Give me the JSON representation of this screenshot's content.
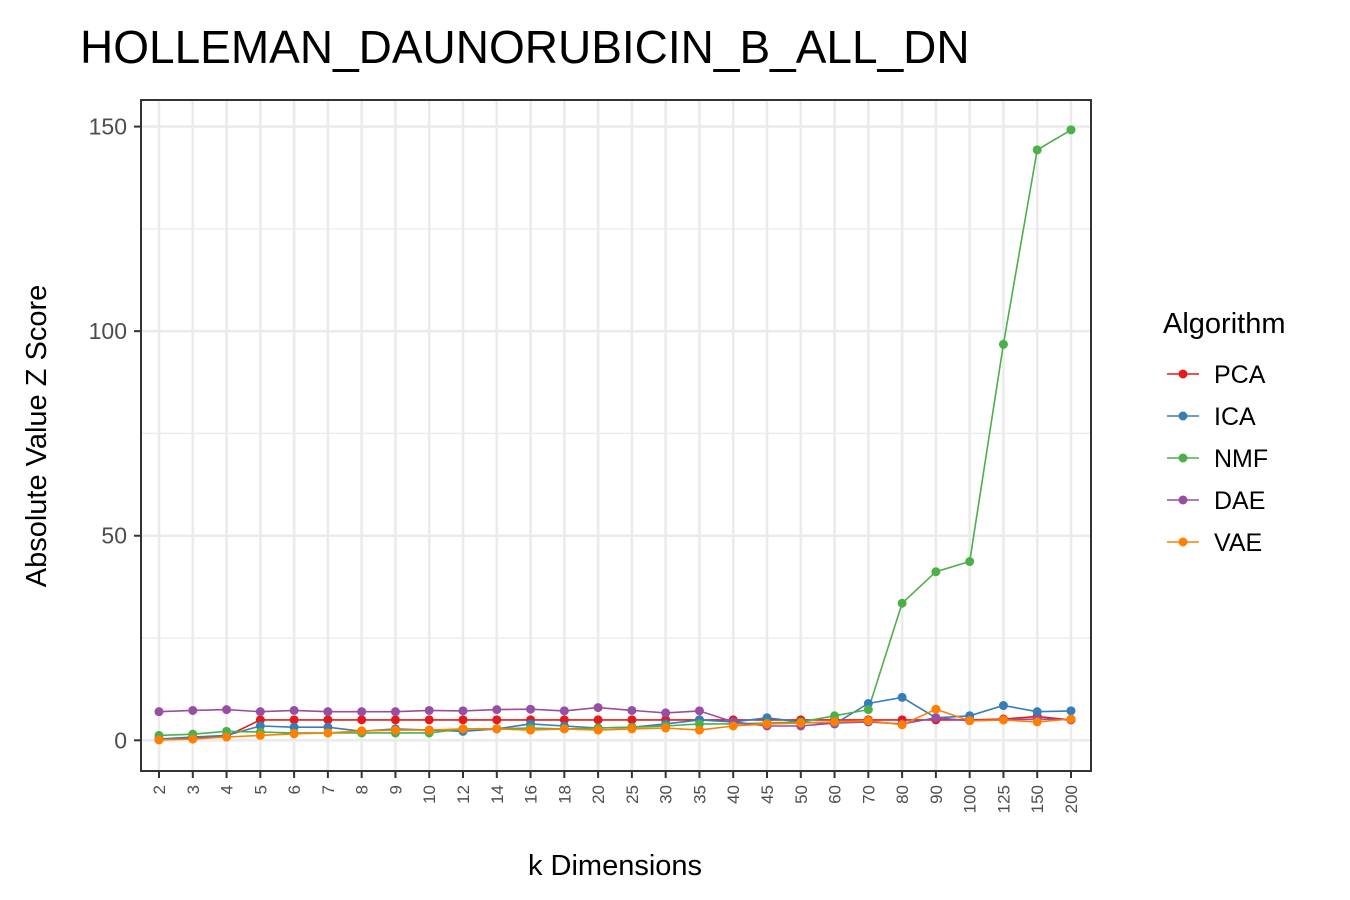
{
  "chart_data": {
    "type": "line",
    "title": "HOLLEMAN_DAUNORUBICIN_B_ALL_DN",
    "xlabel": "k Dimensions",
    "ylabel": "Absolute Value Z Score",
    "ylim": [
      -7.5,
      156.5
    ],
    "yticks": [
      "0",
      "50",
      "100",
      "150"
    ],
    "ytick_values": [
      0,
      50,
      100,
      150
    ],
    "categories": [
      "2",
      "3",
      "4",
      "5",
      "6",
      "7",
      "8",
      "9",
      "10",
      "12",
      "14",
      "16",
      "18",
      "20",
      "25",
      "30",
      "35",
      "40",
      "45",
      "50",
      "60",
      "70",
      "80",
      "90",
      "100",
      "125",
      "150",
      "200"
    ],
    "grid": true,
    "legend": {
      "title": "Algorithm",
      "position": "right"
    },
    "series": [
      {
        "name": "PCA",
        "color": "#E41A1C",
        "values": [
          0.2,
          0.5,
          1.0,
          5.0,
          5.0,
          5.0,
          5.0,
          5.0,
          5.0,
          5.0,
          5.0,
          5.0,
          5.0,
          5.0,
          5.0,
          5.0,
          5.0,
          5.0,
          5.0,
          5.0,
          5.0,
          5.0,
          5.0,
          5.0,
          5.0,
          5.2,
          5.8,
          5.0
        ]
      },
      {
        "name": "ICA",
        "color": "#377EB8",
        "values": [
          0.3,
          0.8,
          1.2,
          3.5,
          3.2,
          3.2,
          2.2,
          2.8,
          2.5,
          2.2,
          2.8,
          4.0,
          3.5,
          3.0,
          3.2,
          4.0,
          5.0,
          4.5,
          5.5,
          4.5,
          4.0,
          9.0,
          10.5,
          5.5,
          6.0,
          8.5,
          7.0,
          7.2
        ]
      },
      {
        "name": "NMF",
        "color": "#4DAF4A",
        "values": [
          1.2,
          1.5,
          2.2,
          2.0,
          1.8,
          1.8,
          1.8,
          1.8,
          1.8,
          2.8,
          2.8,
          3.0,
          2.8,
          3.0,
          3.2,
          3.5,
          4.0,
          4.0,
          4.2,
          4.5,
          6.0,
          7.5,
          33.5,
          41.2,
          43.7,
          96.8,
          144.3,
          149.2
        ]
      },
      {
        "name": "DAE",
        "color": "#984EA3",
        "values": [
          7.0,
          7.3,
          7.5,
          7.0,
          7.3,
          7.0,
          7.0,
          7.0,
          7.3,
          7.2,
          7.5,
          7.6,
          7.2,
          8.0,
          7.3,
          6.7,
          7.2,
          4.5,
          3.5,
          3.5,
          4.2,
          4.5,
          4.0,
          5.5,
          4.8,
          5.0,
          5.2,
          5.0
        ]
      },
      {
        "name": "VAE",
        "color": "#FF7F00",
        "values": [
          0.1,
          0.3,
          0.8,
          1.2,
          1.6,
          1.8,
          2.3,
          2.5,
          2.5,
          2.8,
          2.8,
          2.5,
          2.8,
          2.5,
          2.8,
          3.0,
          2.5,
          3.5,
          4.0,
          4.2,
          4.5,
          4.8,
          3.8,
          7.6,
          4.8,
          5.0,
          4.5,
          5.2
        ]
      }
    ]
  }
}
